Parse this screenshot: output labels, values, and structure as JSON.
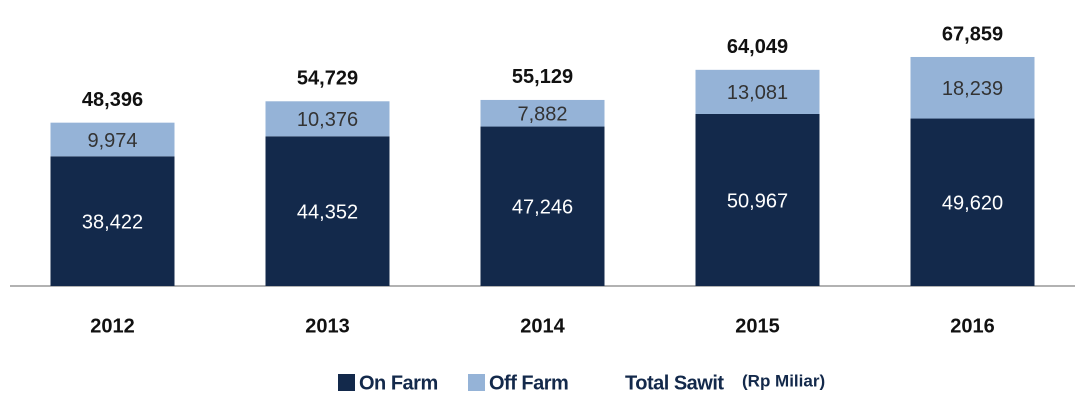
{
  "chart_data": {
    "type": "stacked_bar",
    "categories": [
      "2012",
      "2013",
      "2014",
      "2015",
      "2016"
    ],
    "series": [
      {
        "name": "On Farm",
        "color": "#13294b",
        "values": [
          38422,
          44352,
          47246,
          50967,
          49620
        ],
        "value_labels": [
          "38,422",
          "44,352",
          "47,246",
          "50,967",
          "49,620"
        ]
      },
      {
        "name": "Off Farm",
        "color": "#95b3d7",
        "values": [
          9974,
          10376,
          7882,
          13081,
          18239
        ],
        "value_labels": [
          "9,974",
          "10,376",
          "7,882",
          "13,081",
          "18,239"
        ]
      }
    ],
    "totals": {
      "name": "Total Sawit",
      "unit": "(Rp Miliar)",
      "values": [
        48396,
        54729,
        55129,
        64049,
        67859
      ],
      "value_labels": [
        "48,396",
        "54,729",
        "55,129",
        "64,049",
        "67,859"
      ]
    },
    "ylim": [
      0,
      80000
    ]
  }
}
